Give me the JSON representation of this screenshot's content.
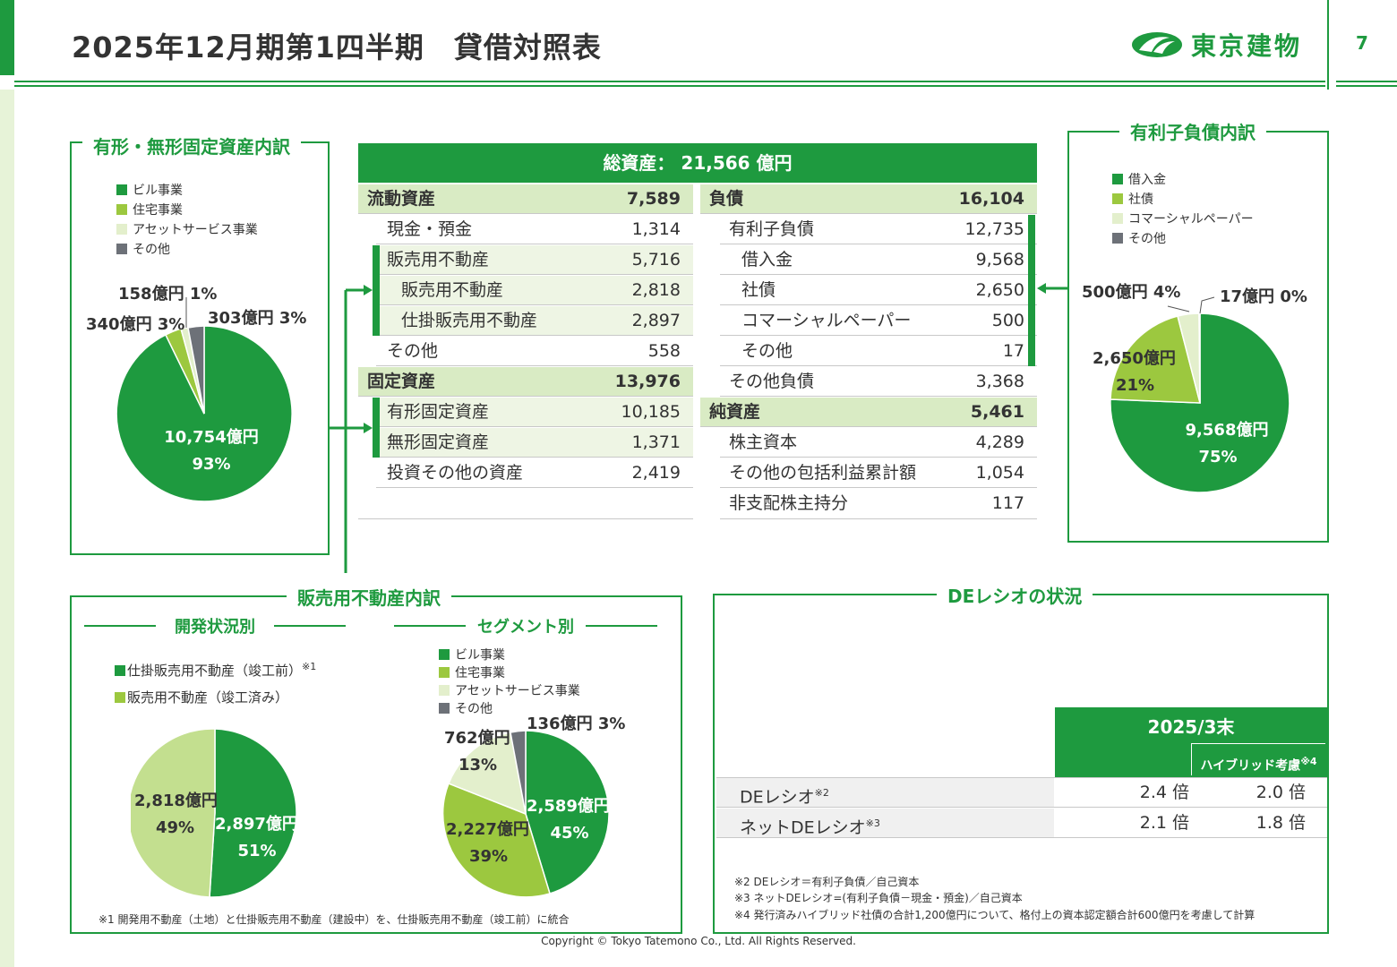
{
  "header": {
    "title": "2025年12月期第1四半期　貸借対照表",
    "company": "東京建物",
    "page_number": "7"
  },
  "fixed_assets": {
    "title": "有形・無形固定資産内訳",
    "legend": [
      "ビル事業",
      "住宅事業",
      "アセットサービス事業",
      "その他"
    ],
    "labels": {
      "building": "10,754億円",
      "building_pct": "93%",
      "residential": "340億円 3%",
      "asset_service": "158億円 1%",
      "other": "303億円 3%"
    }
  },
  "interest_debt": {
    "title": "有利子負債内訳",
    "legend": [
      "借入金",
      "社債",
      "コマーシャルペーパー",
      "その他"
    ],
    "labels": {
      "loans": "9,568億円",
      "loans_pct": "75%",
      "bonds": "2,650億円",
      "bonds_pct": "21%",
      "cp": "500億円 4%",
      "other": "17億円 0%"
    }
  },
  "balance_sheet": {
    "total": "総資産： 21,566 億円",
    "left": [
      {
        "name": "流動資産",
        "value": "7,589"
      },
      {
        "name": "現金・預金",
        "value": "1,314"
      },
      {
        "name": "販売用不動産",
        "value": "5,716"
      },
      {
        "name": "販売用不動産",
        "value": "2,818"
      },
      {
        "name": "仕掛販売用不動産",
        "value": "2,897"
      },
      {
        "name": "その他",
        "value": "558"
      },
      {
        "name": "固定資産",
        "value": "13,976"
      },
      {
        "name": "有形固定資産",
        "value": "10,185"
      },
      {
        "name": "無形固定資産",
        "value": "1,371"
      },
      {
        "name": "投資その他の資産",
        "value": "2,419"
      }
    ],
    "right": [
      {
        "name": "負債",
        "value": "16,104"
      },
      {
        "name": "有利子負債",
        "value": "12,735"
      },
      {
        "name": "借入金",
        "value": "9,568"
      },
      {
        "name": "社債",
        "value": "2,650"
      },
      {
        "name": "コマーシャルペーパー",
        "value": "500"
      },
      {
        "name": "その他",
        "value": "17"
      },
      {
        "name": "その他負債",
        "value": "3,368"
      },
      {
        "name": "純資産",
        "value": "5,461"
      },
      {
        "name": "株主資本",
        "value": "4,289"
      },
      {
        "name": "その他の包括利益累計額",
        "value": "1,054"
      },
      {
        "name": "非支配株主持分",
        "value": "117"
      }
    ]
  },
  "sales_property": {
    "title": "販売用不動産内訳",
    "dev": {
      "title": "開発状況別",
      "legend": [
        "仕掛販売用不動産（竣工前）",
        "販売用不動産（竣工済み）"
      ],
      "legend_note": "※1",
      "labels": {
        "in_progress": "2,897億円",
        "in_progress_pct": "51%",
        "completed": "2,818億円",
        "completed_pct": "49%"
      }
    },
    "segment": {
      "title": "セグメント別",
      "legend": [
        "ビル事業",
        "住宅事業",
        "アセットサービス事業",
        "その他"
      ],
      "labels": {
        "building": "2,589億円",
        "building_pct": "45%",
        "residential": "2,227億円",
        "residential_pct": "39%",
        "asset_service": "762億円",
        "asset_service_pct": "13%",
        "other": "136億円 3%"
      }
    },
    "note": "※1 開発用不動産（土地）と仕掛販売用不動産（建設中）を、仕掛販売用不動産（竣工前）に統合"
  },
  "de_ratio": {
    "title": "DEレシオの状況",
    "col_header": "2025/3末",
    "sub_header": "ハイブリッド考慮",
    "sub_header_note": "※4",
    "rows": [
      {
        "name": "DEレシオ",
        "note": "※2",
        "v1": "2.4 倍",
        "v2": "2.0 倍"
      },
      {
        "name": "ネットDEレシオ",
        "note": "※3",
        "v1": "2.1 倍",
        "v2": "1.8 倍"
      }
    ],
    "notes": [
      "※2 DEレシオ＝有利子負債／自己資本",
      "※3 ネットDEレシオ=(有利子負債－現金・預金)／自己資本",
      "※4 発行済みハイブリッド社債の合計1,200億円について、格付上の資本認定額合計600億円を考慮して計算"
    ]
  },
  "copyright": "Copyright © Tokyo Tatemono Co., Ltd. All Rights Reserved.",
  "colors": {
    "green_dark": "#1e9a3f",
    "green_light": "#9cc83f",
    "green_pale": "#e3efcc",
    "dev_completed": "#c3df8f",
    "other_gray": "#6d7178"
  }
}
